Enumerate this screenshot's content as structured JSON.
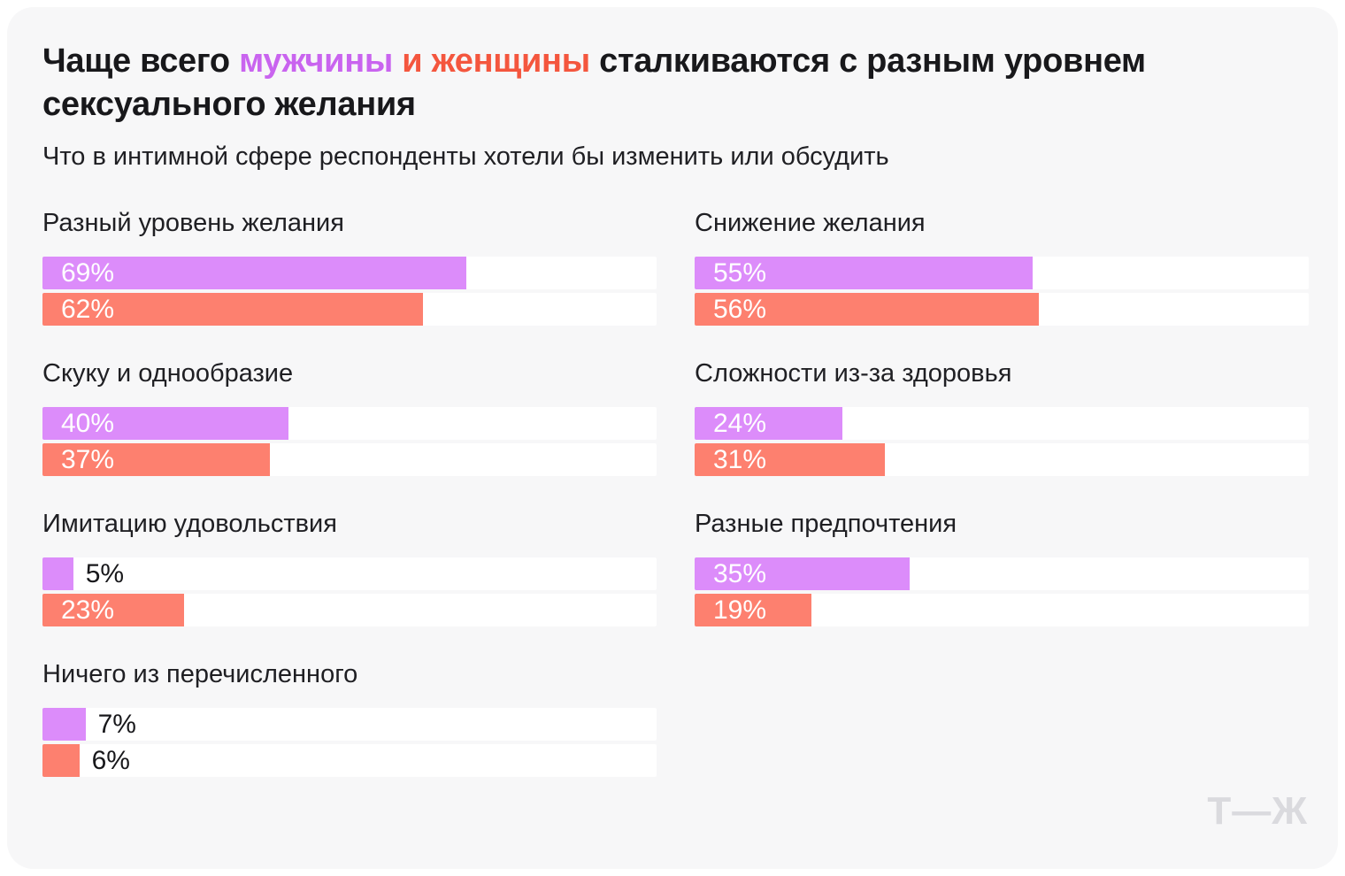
{
  "header": {
    "title_parts": [
      {
        "text": "Чаще всего ",
        "color": "#18181b"
      },
      {
        "text": "мужчины",
        "color": "#c964ef"
      },
      {
        "text": " и женщины",
        "color": "#f4563e"
      },
      {
        "text": " сталкиваются с разным уровнем сексуального желания",
        "color": "#18181b"
      }
    ],
    "subtitle": "Что в интимной сфере респонденты хотели бы изменить или обсудить"
  },
  "chart_data": {
    "type": "bar",
    "orientation": "horizontal",
    "unit": "%",
    "xlim": [
      0,
      100
    ],
    "value_label_inside_threshold": 15,
    "series": [
      {
        "name": "мужчины",
        "color": "#dc8cfa"
      },
      {
        "name": "женщины",
        "color": "#fd806f"
      }
    ],
    "columns": [
      {
        "groups": [
          {
            "category": "Разный уровень желания",
            "values": [
              69,
              62
            ]
          },
          {
            "category": "Скуку и однообразие",
            "values": [
              40,
              37
            ]
          },
          {
            "category": "Имитацию удовольствия",
            "values": [
              5,
              23
            ]
          },
          {
            "category": "Ничего из перечисленного",
            "values": [
              7,
              6
            ]
          }
        ]
      },
      {
        "groups": [
          {
            "category": "Снижение желания",
            "values": [
              55,
              56
            ]
          },
          {
            "category": "Сложности из-за здоровья",
            "values": [
              24,
              31
            ]
          },
          {
            "category": "Разные предпочтения",
            "values": [
              35,
              19
            ]
          }
        ]
      }
    ],
    "track_color": "#ffffff",
    "label_in_color": "#ffffff",
    "label_out_color": "#18181b"
  },
  "footer": {
    "logo": "Т—Ж"
  },
  "colors": {
    "page_bg": "#ffffff",
    "card_bg": "#f7f7f8",
    "logo": "#dadade"
  }
}
